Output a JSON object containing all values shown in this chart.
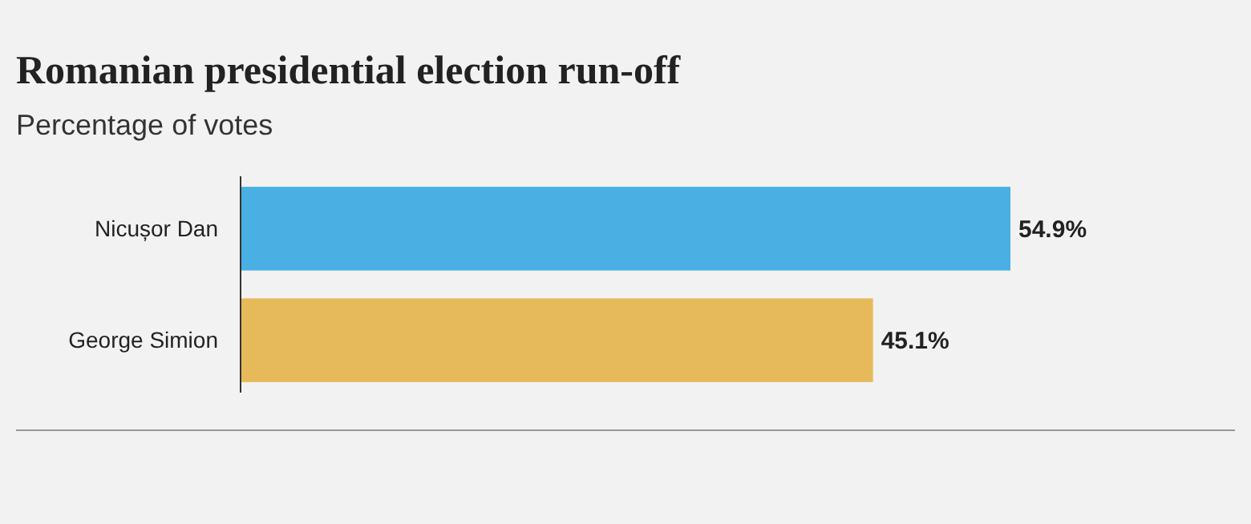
{
  "chart_data": {
    "type": "bar",
    "orientation": "horizontal",
    "title": "Romanian presidential election run-off",
    "subtitle": "Percentage of votes",
    "categories": [
      "Nicușor Dan",
      "George Simion"
    ],
    "values": [
      54.9,
      45.1
    ],
    "colors": [
      "#4aafe3",
      "#e6b95a"
    ],
    "value_labels": [
      "54.9%",
      "45.1%"
    ]
  }
}
